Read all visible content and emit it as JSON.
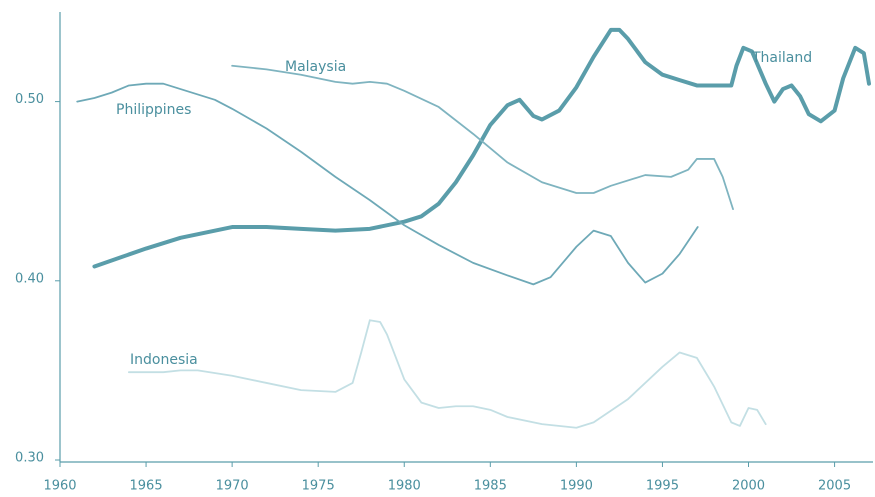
{
  "chart_data": {
    "type": "line",
    "xlim": [
      1960,
      2007
    ],
    "xticks": [
      1960,
      1965,
      1970,
      1975,
      1980,
      1985,
      1990,
      1995,
      2000,
      2005
    ],
    "ylim": [
      0.3,
      0.55
    ],
    "yticks": [
      {
        "value": 0.3,
        "label": "0.30"
      },
      {
        "value": 0.4,
        "label": "0.40"
      },
      {
        "value": 0.5,
        "label": "0.50"
      }
    ],
    "series": [
      {
        "name": "Thailand",
        "color": "#5a9daa",
        "width": 4,
        "x": [
          1962,
          1965,
          1967,
          1970,
          1972,
          1974,
          1976,
          1978,
          1980,
          1981,
          1982,
          1983,
          1984,
          1985,
          1986,
          1986.7,
          1987.5,
          1988,
          1989,
          1990,
          1991,
          1992,
          1992.5,
          1993,
          1994,
          1995,
          1996,
          1997,
          1999,
          1999.3,
          1999.7,
          2000.2,
          2001,
          2001.5,
          2002,
          2002.5,
          2003,
          2003.5,
          2004.2,
          2005,
          2005.5,
          2006.2,
          2006.7,
          2007
        ],
        "values": [
          0.408,
          0.418,
          0.424,
          0.43,
          0.43,
          0.429,
          0.428,
          0.429,
          0.433,
          0.436,
          0.443,
          0.455,
          0.47,
          0.487,
          0.498,
          0.501,
          0.492,
          0.49,
          0.495,
          0.508,
          0.525,
          0.54,
          0.54,
          0.535,
          0.522,
          0.515,
          0.512,
          0.509,
          0.509,
          0.52,
          0.53,
          0.528,
          0.51,
          0.5,
          0.507,
          0.509,
          0.503,
          0.493,
          0.489,
          0.495,
          0.513,
          0.53,
          0.527,
          0.51
        ]
      },
      {
        "name": "Malaysia",
        "color": "#7fb4c0",
        "width": 1.8,
        "x": [
          1970,
          1972,
          1974,
          1976,
          1977,
          1978,
          1979,
          1980,
          1982,
          1984,
          1986,
          1988,
          1990,
          1991,
          1992,
          1994,
          1995.5,
          1996.5,
          1997,
          1998,
          1998.5,
          1999.1
        ],
        "values": [
          0.52,
          0.518,
          0.515,
          0.511,
          0.51,
          0.511,
          0.51,
          0.506,
          0.497,
          0.482,
          0.466,
          0.455,
          0.449,
          0.449,
          0.453,
          0.459,
          0.458,
          0.462,
          0.468,
          0.468,
          0.458,
          0.44
        ]
      },
      {
        "name": "Philippines",
        "color": "#6ea9b7",
        "width": 1.8,
        "x": [
          1961,
          1962,
          1963,
          1964,
          1965,
          1966,
          1967,
          1969,
          1970,
          1972,
          1974,
          1976,
          1978,
          1980,
          1982,
          1984,
          1986,
          1987.5,
          1988.5,
          1990,
          1991,
          1992,
          1993,
          1994,
          1995,
          1996,
          1997.05
        ],
        "values": [
          0.5,
          0.502,
          0.505,
          0.509,
          0.51,
          0.51,
          0.507,
          0.501,
          0.496,
          0.485,
          0.472,
          0.458,
          0.445,
          0.431,
          0.42,
          0.41,
          0.403,
          0.398,
          0.402,
          0.419,
          0.428,
          0.425,
          0.41,
          0.399,
          0.404,
          0.415,
          0.43
        ]
      },
      {
        "name": "Indonesia",
        "color": "#c3dfe4",
        "width": 1.8,
        "x": [
          1964,
          1966,
          1967,
          1968,
          1970,
          1972,
          1974,
          1976,
          1977,
          1977.5,
          1978,
          1978.6,
          1979,
          1980,
          1981,
          1982,
          1983,
          1984,
          1985,
          1986,
          1988,
          1990,
          1991,
          1993,
          1995,
          1996,
          1997,
          1998,
          1999,
          1999.5,
          2000,
          2000.5,
          2001
        ],
        "values": [
          0.349,
          0.349,
          0.35,
          0.35,
          0.347,
          0.343,
          0.339,
          0.338,
          0.343,
          0.36,
          0.378,
          0.377,
          0.37,
          0.345,
          0.332,
          0.329,
          0.33,
          0.33,
          0.328,
          0.324,
          0.32,
          0.318,
          0.321,
          0.334,
          0.352,
          0.36,
          0.357,
          0.341,
          0.321,
          0.319,
          0.329,
          0.328,
          0.32
        ]
      }
    ]
  }
}
